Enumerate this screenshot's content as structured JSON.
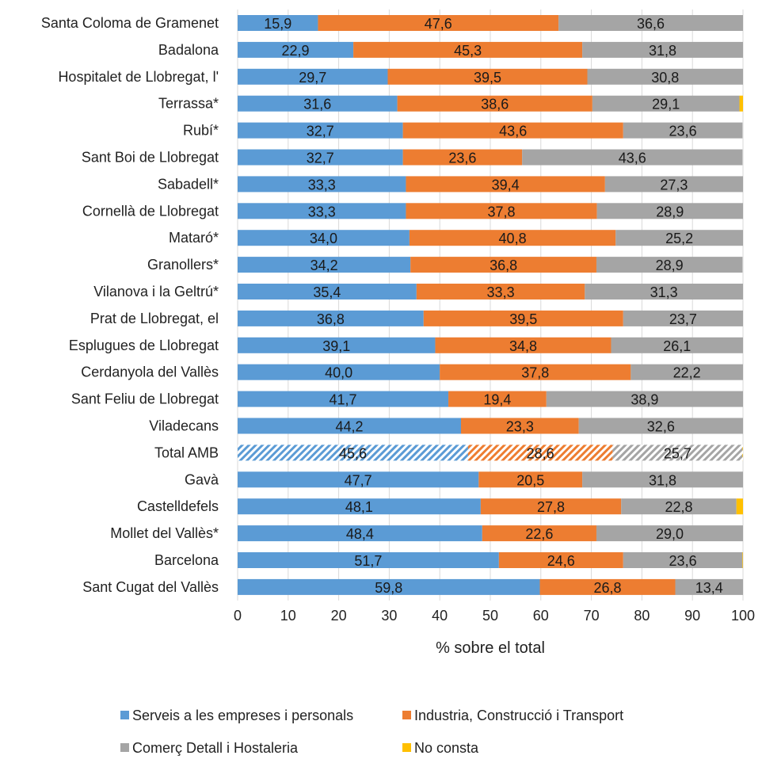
{
  "chart_data": {
    "type": "bar",
    "orientation": "horizontal",
    "stacked": true,
    "categories": [
      "Santa Coloma de Gramenet",
      "Badalona",
      "Hospitalet de Llobregat, l'",
      "Terrassa*",
      "Rubí*",
      "Sant Boi de Llobregat",
      "Sabadell*",
      "Cornellà de Llobregat",
      "Mataró*",
      "Granollers*",
      "Vilanova i la Geltrú*",
      "Prat de Llobregat, el",
      "Esplugues de Llobregat",
      "Cerdanyola del Vallès",
      "Sant Feliu de Llobregat",
      "Viladecans",
      "Total AMB",
      "Gavà",
      "Castelldefels",
      "Mollet del Vallès*",
      "Barcelona",
      "Sant Cugat del Vallès"
    ],
    "series": [
      {
        "name": "Serveis a les empreses i personals",
        "color": "#5b9bd5",
        "values": [
          15.9,
          22.9,
          29.7,
          31.6,
          32.7,
          32.7,
          33.3,
          33.3,
          34.0,
          34.2,
          35.4,
          36.8,
          39.1,
          40.0,
          41.7,
          44.2,
          45.6,
          47.7,
          48.1,
          48.4,
          51.7,
          59.8
        ],
        "labels": [
          "15,9",
          "22,9",
          "29,7",
          "31,6",
          "32,7",
          "32,7",
          "33,3",
          "33,3",
          "34,0",
          "34,2",
          "35,4",
          "36,8",
          "39,1",
          "40,0",
          "41,7",
          "44,2",
          "45,6",
          "47,7",
          "48,1",
          "48,4",
          "51,7",
          "59,8"
        ]
      },
      {
        "name": "Industria, Construcció i Transport",
        "color": "#ed7d31",
        "values": [
          47.6,
          45.3,
          39.5,
          38.6,
          43.6,
          23.6,
          39.4,
          37.8,
          40.8,
          36.8,
          33.3,
          39.5,
          34.8,
          37.8,
          19.4,
          23.3,
          28.6,
          20.5,
          27.8,
          22.6,
          24.6,
          26.8
        ],
        "labels": [
          "47,6",
          "45,3",
          "39,5",
          "38,6",
          "43,6",
          "23,6",
          "39,4",
          "37,8",
          "40,8",
          "36,8",
          "33,3",
          "39,5",
          "34,8",
          "37,8",
          "19,4",
          "23,3",
          "28,6",
          "20,5",
          "27,8",
          "22,6",
          "24,6",
          "26,8"
        ]
      },
      {
        "name": "Comerç Detall i Hostaleria",
        "color": "#a5a5a5",
        "values": [
          36.6,
          31.8,
          30.8,
          29.1,
          23.6,
          43.6,
          27.3,
          28.9,
          25.2,
          28.9,
          31.3,
          23.7,
          26.1,
          22.2,
          38.9,
          32.6,
          25.7,
          31.8,
          22.8,
          29.0,
          23.6,
          13.4
        ],
        "labels": [
          "36,6",
          "31,8",
          "30,8",
          "29,1",
          "23,6",
          "43,6",
          "27,3",
          "28,9",
          "25,2",
          "28,9",
          "31,3",
          "23,7",
          "26,1",
          "22,2",
          "38,9",
          "32,6",
          "25,7",
          "31,8",
          "22,8",
          "29,0",
          "23,6",
          "13,4"
        ]
      },
      {
        "name": "No consta",
        "color": "#ffc000",
        "values": [
          0,
          0,
          0,
          0.7,
          0,
          0,
          0,
          0,
          0,
          0,
          0,
          0,
          0,
          0,
          0,
          0,
          0.1,
          0,
          1.3,
          0,
          0.1,
          0
        ],
        "labels": []
      }
    ],
    "highlighted_category": "Total AMB",
    "xlabel": "% sobre el total",
    "ylabel": "",
    "xlim": [
      0,
      100
    ],
    "xticks": [
      0,
      10,
      20,
      30,
      40,
      50,
      60,
      70,
      80,
      90,
      100
    ],
    "grid": true,
    "legend_position": "bottom"
  }
}
